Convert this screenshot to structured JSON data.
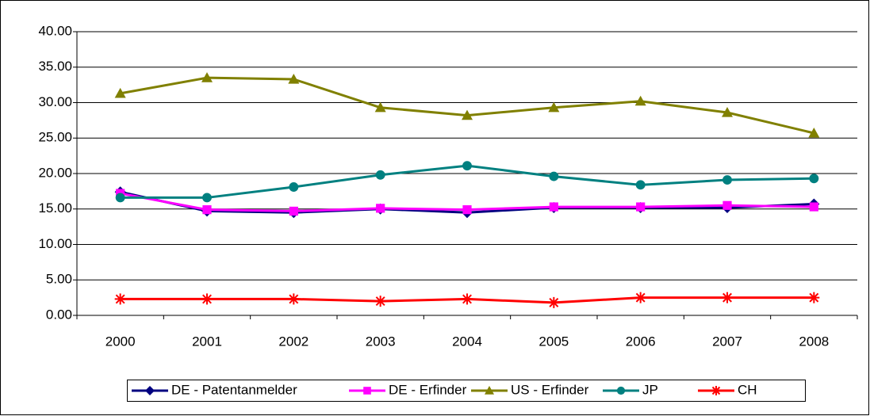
{
  "chart_data": {
    "type": "line",
    "categories": [
      "2000",
      "2001",
      "2002",
      "2003",
      "2004",
      "2005",
      "2006",
      "2007",
      "2008"
    ],
    "series": [
      {
        "name": "DE - Patentanmelder",
        "color": "#000080",
        "marker": "diamond",
        "values": [
          17.4,
          14.7,
          14.5,
          15.0,
          14.5,
          15.2,
          15.2,
          15.2,
          15.7
        ]
      },
      {
        "name": "DE - Erfinder",
        "color": "#ff00ff",
        "marker": "square",
        "values": [
          17.2,
          14.9,
          14.7,
          15.1,
          14.9,
          15.3,
          15.3,
          15.5,
          15.3
        ]
      },
      {
        "name": "US - Erfinder",
        "color": "#808000",
        "marker": "triangle",
        "values": [
          31.3,
          33.5,
          33.3,
          29.3,
          28.2,
          29.3,
          30.2,
          28.6,
          25.7
        ]
      },
      {
        "name": "JP",
        "color": "#008080",
        "marker": "circle",
        "values": [
          16.6,
          16.6,
          18.1,
          19.8,
          21.1,
          19.6,
          18.4,
          19.1,
          19.3
        ]
      },
      {
        "name": "CH",
        "color": "#ff0000",
        "marker": "asterisk",
        "values": [
          2.3,
          2.3,
          2.3,
          2.0,
          2.3,
          1.8,
          2.5,
          2.5,
          2.5
        ]
      }
    ],
    "ylim": [
      0,
      40
    ],
    "yticks": [
      {
        "value": 0,
        "label": "0.00"
      },
      {
        "value": 5,
        "label": "5.00"
      },
      {
        "value": 10,
        "label": "10.00"
      },
      {
        "value": 15,
        "label": "15.00"
      },
      {
        "value": 20,
        "label": "20.00"
      },
      {
        "value": 25,
        "label": "25.00"
      },
      {
        "value": 30,
        "label": "30.00"
      },
      {
        "value": 35,
        "label": "35.00"
      },
      {
        "value": 40,
        "label": "40.00"
      }
    ],
    "grid": true,
    "legend": "bottom"
  }
}
